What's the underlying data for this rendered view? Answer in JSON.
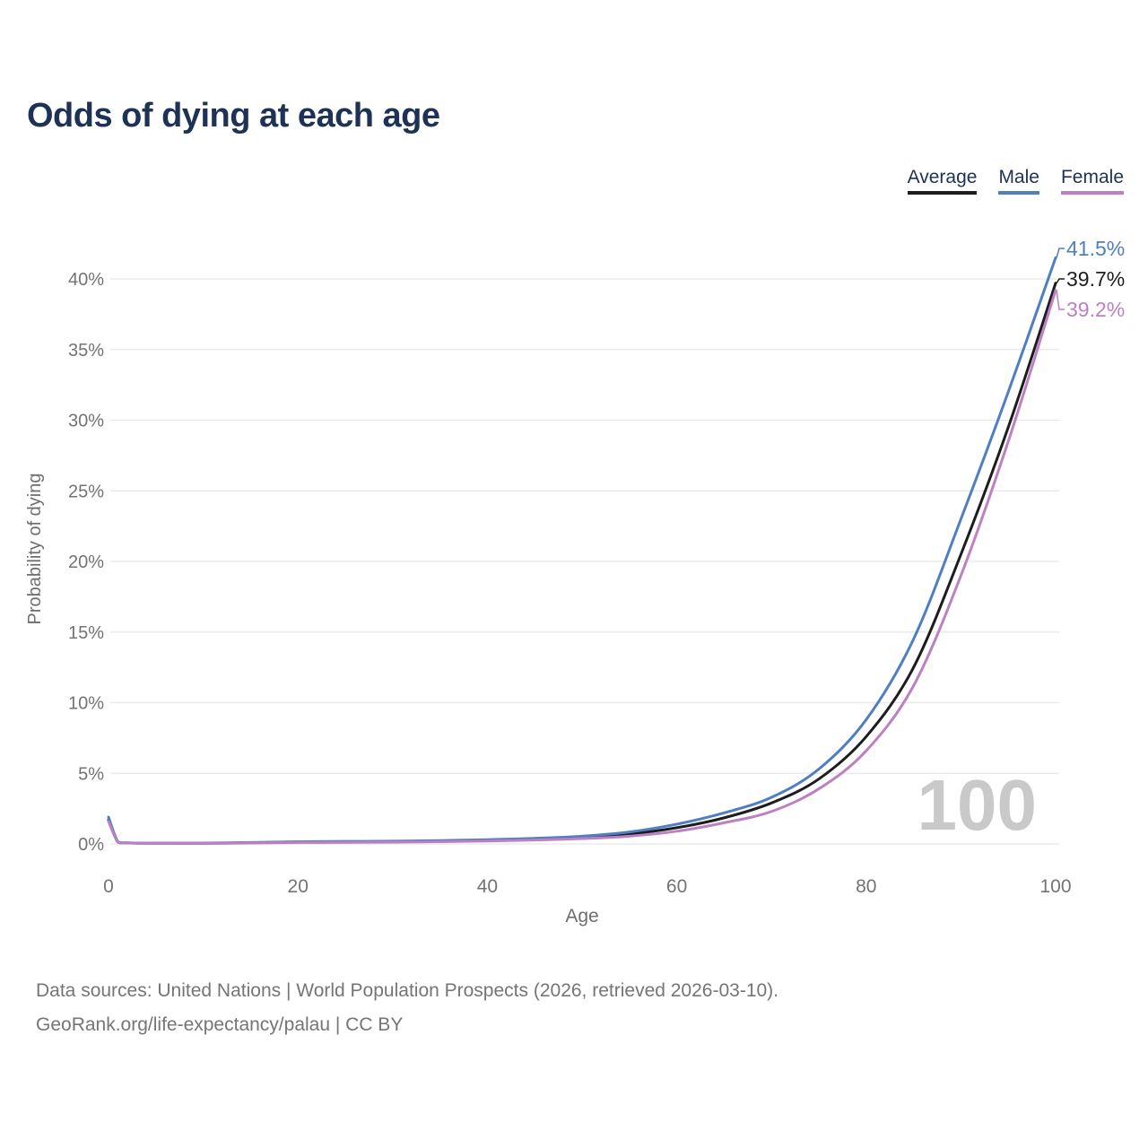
{
  "page": {
    "title": "Odds of dying at each age",
    "watermark": "100",
    "footer_line1": "Data sources: United Nations | World Population Prospects (2026, retrieved 2026-03-10).",
    "footer_line2": "GeoRank.org/life-expectancy/palau | CC BY"
  },
  "colors": {
    "title_text": "#1d3254",
    "axis_text": "#6e6e6e",
    "tick_text": "#737373",
    "gridline": "#e7e7e7",
    "watermark": "#c9c9c9",
    "footer_text": "#757575"
  },
  "chart_data": {
    "type": "line",
    "title": "Odds of dying at each age",
    "xlabel": "Age",
    "ylabel": "Probability of dying",
    "xlim": [
      0,
      100
    ],
    "ylim": [
      0,
      42
    ],
    "grid": "horizontal",
    "legend_position": "top-right",
    "x_ticks": [
      0,
      20,
      40,
      60,
      80,
      100
    ],
    "y_ticks": [
      0,
      5,
      10,
      15,
      20,
      25,
      30,
      35,
      40
    ],
    "y_tick_suffix": "%",
    "ages": [
      0,
      1,
      2,
      5,
      10,
      15,
      20,
      25,
      30,
      35,
      40,
      45,
      50,
      55,
      60,
      65,
      70,
      75,
      80,
      85,
      90,
      95,
      100
    ],
    "series": [
      {
        "name": "Average",
        "color": "#1d1d1d",
        "end_label": "39.7%",
        "end_value": 39.7,
        "values": [
          1.7,
          0.13,
          0.07,
          0.05,
          0.05,
          0.08,
          0.13,
          0.15,
          0.17,
          0.2,
          0.26,
          0.34,
          0.45,
          0.7,
          1.15,
          1.85,
          2.9,
          4.6,
          7.6,
          12.5,
          20.5,
          29.5,
          39.7
        ]
      },
      {
        "name": "Male",
        "color": "#4f7fc2",
        "end_label": "41.5%",
        "end_value": 41.5,
        "values": [
          1.9,
          0.15,
          0.08,
          0.06,
          0.06,
          0.1,
          0.16,
          0.18,
          0.2,
          0.24,
          0.3,
          0.4,
          0.55,
          0.85,
          1.4,
          2.2,
          3.3,
          5.3,
          8.8,
          14.5,
          23.0,
          32.0,
          41.5
        ]
      },
      {
        "name": "Female",
        "color": "#bd80c2",
        "end_label": "39.2%",
        "end_value": 39.2,
        "values": [
          1.6,
          0.12,
          0.06,
          0.04,
          0.04,
          0.06,
          0.1,
          0.11,
          0.13,
          0.16,
          0.21,
          0.28,
          0.38,
          0.55,
          0.9,
          1.5,
          2.3,
          3.9,
          6.6,
          11.2,
          19.0,
          28.5,
          39.2
        ]
      }
    ]
  }
}
